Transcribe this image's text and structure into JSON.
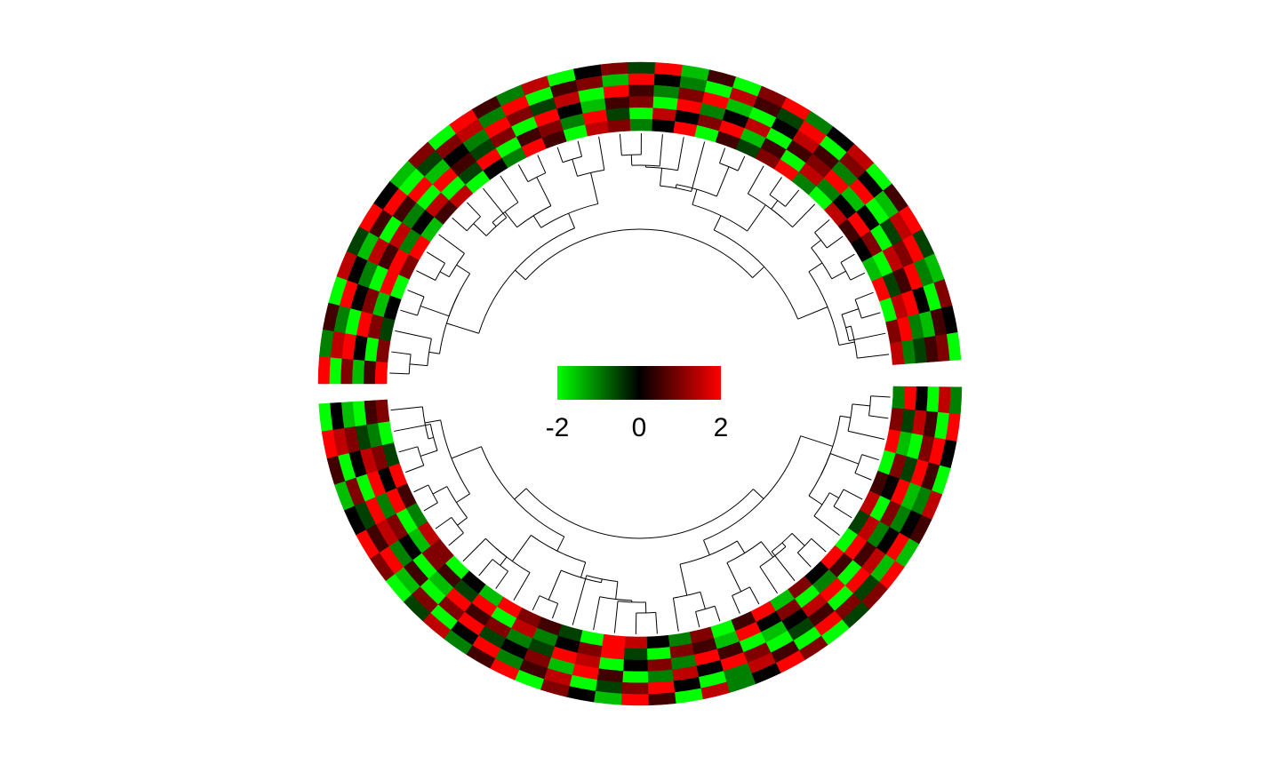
{
  "chart_data": {
    "type": "circular_heatmap",
    "colors": {
      "low": "#00ff00",
      "mid": "#000000",
      "high": "#ff0000"
    },
    "legend": {
      "lim": [
        -2,
        2
      ],
      "ticks": [
        -2,
        0,
        2
      ]
    },
    "sectors": [
      {
        "rows": [
          [
            2,
            -1,
            0.5,
            -2,
            1.5,
            -0.5,
            2,
            0,
            -1.5,
            1,
            -2,
            2,
            0.5,
            -1,
            1.5,
            -2,
            0,
            1,
            -0.5,
            2,
            -1.5,
            0.5,
            -2,
            1,
            2,
            -1,
            0,
            1.5,
            -2,
            0.5,
            2,
            -0.5,
            -1.5,
            1,
            0,
            -2
          ],
          [
            -2,
            1.5,
            -1,
            2,
            0,
            -1.5,
            0.5,
            2,
            -2,
            -0.5,
            1,
            1.5,
            -1,
            2,
            -2,
            0.5,
            1,
            -1.5,
            2,
            0,
            -1,
            -2,
            1.5,
            0.5,
            -0.5,
            2,
            -2,
            1,
            0,
            -1.5,
            1.5,
            2,
            -1,
            -2,
            0.5,
            1
          ],
          [
            1,
            2,
            -2,
            0,
            -1,
            1.5,
            -2,
            0.5,
            2,
            -1.5,
            0,
            -1,
            2,
            1,
            -0.5,
            1.5,
            -2,
            2,
            0.5,
            -1,
            1,
            2,
            -1.5,
            -2,
            0,
            1.5,
            0.5,
            -1,
            2,
            -2,
            -0.5,
            1,
            2,
            0,
            -1.5,
            0.5
          ],
          [
            -1.5,
            0,
            2,
            1,
            -2,
            0.5,
            1.5,
            -1,
            -2,
            2,
            0.5,
            -0.5,
            1,
            -2,
            2,
            0,
            -1.5,
            0.5,
            1,
            -2,
            2,
            -1,
            0,
            1.5,
            -2,
            0.5,
            1,
            2,
            -1.5,
            0,
            -2,
            1.5,
            0.5,
            2,
            -1,
            -0.5
          ],
          [
            0.5,
            -2,
            1,
            -1.5,
            2,
            2,
            -1,
            0,
            1.5,
            -2,
            -0.5,
            2,
            -2,
            0.5,
            1,
            -1,
            2,
            -0.5,
            -2,
            1.5,
            0,
            1,
            2,
            -1.5,
            0.5,
            -2,
            1.5,
            -1,
            0,
            2,
            1,
            -2,
            -0.5,
            1.5,
            2,
            -1
          ],
          [
            2,
            1,
            -0.5,
            0,
            -2,
            1,
            2,
            -1.5,
            0.5,
            1.5,
            -2,
            0,
            -1,
            2,
            0.5,
            -2,
            1.5,
            1,
            -1,
            0,
            2,
            -2,
            0.5,
            -0.5,
            1,
            2,
            -1,
            -2,
            1.5,
            0.5,
            0,
            -1.5,
            2,
            -2,
            1,
            1.5
          ]
        ]
      },
      {
        "rows": [
          [
            -1,
            2,
            0,
            -2,
            1.5,
            0.5,
            -1.5,
            2,
            1,
            -0.5,
            -2,
            1,
            2,
            0,
            -1,
            1.5,
            -2,
            0.5,
            2,
            -1.5,
            0,
            1,
            -2,
            2,
            0.5,
            -1,
            1.5,
            -0.5,
            -2,
            1,
            2,
            0,
            -1.5,
            0.5,
            2,
            -2
          ],
          [
            1.5,
            -2,
            2,
            0.5,
            -1,
            0,
            2,
            -1.5,
            -0.5,
            1,
            2,
            -2,
            0.5,
            1.5,
            -1,
            -2,
            0,
            2,
            1,
            -0.5,
            -2,
            1.5,
            0.5,
            -1,
            2,
            0,
            -2,
            1,
            -1.5,
            2,
            0.5,
            -0.5,
            1,
            -2,
            1.5,
            0
          ],
          [
            -2,
            0.5,
            1,
            2,
            -1.5,
            -1,
            0,
            1.5,
            2,
            -2,
            0.5,
            -0.5,
            -2,
            1,
            2,
            0,
            1.5,
            -1,
            -2,
            0.5,
            2,
            -1.5,
            1,
            0,
            -0.5,
            2,
            1,
            -2,
            0.5,
            -1,
            1.5,
            2,
            -2,
            0,
            1,
            -1.5
          ],
          [
            0,
            1.5,
            -2,
            -0.5,
            2,
            1,
            -1,
            0.5,
            -2,
            2,
            1.5,
            0,
            -1.5,
            -2,
            0.5,
            2,
            -1,
            1,
            0,
            -2,
            1.5,
            2,
            -0.5,
            -1,
            1,
            0.5,
            2,
            -1.5,
            -2,
            0,
            1,
            -1,
            2,
            1.5,
            -0.5,
            -2
          ],
          [
            2,
            -0.5,
            -1.5,
            1,
            0,
            -2,
            1.5,
            2,
            0.5,
            -1,
            -2,
            1,
            0,
            2,
            -1.5,
            0.5,
            1,
            -2,
            -0.5,
            2,
            1,
            0,
            -1,
            1.5,
            -2,
            2,
            -0.5,
            0.5,
            1,
            -1.5,
            -2,
            2,
            0,
            1,
            -1,
            0.5
          ],
          [
            -1,
            1,
            2,
            -2,
            0.5,
            1.5,
            -0.5,
            -2,
            2,
            0,
            1,
            -1.5,
            2,
            0.5,
            -2,
            1,
            -1,
            0,
            1.5,
            2,
            -2,
            -0.5,
            0.5,
            1,
            2,
            -1.5,
            0,
            -2,
            1,
            1.5,
            -1,
            0.5,
            2,
            -0.5,
            -2,
            1
          ]
        ]
      }
    ]
  }
}
